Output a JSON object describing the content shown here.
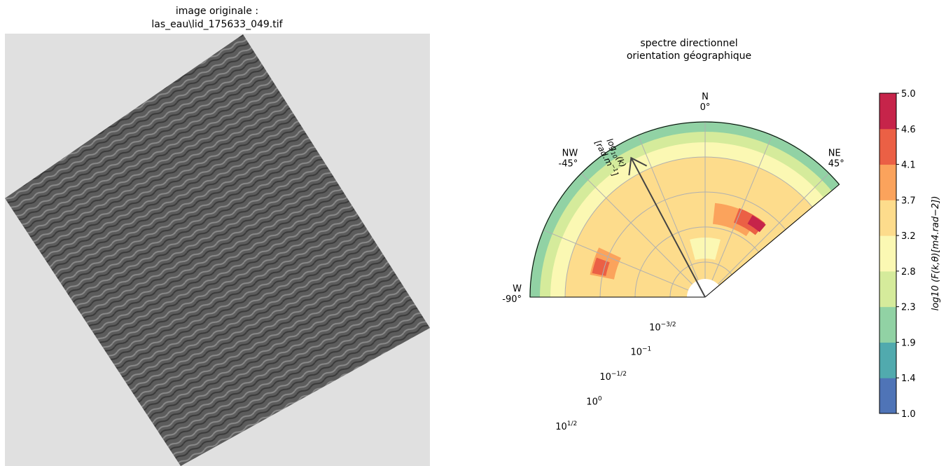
{
  "left_panel": {
    "title_line1": "image originale :",
    "title_line2": "las_eau\\lid_175633_049.tif",
    "background_color": "#e0e0e0",
    "image_color": "#5a5a5a"
  },
  "chart_data": {
    "type": "polar-contour",
    "title_line1": "spectre directionnel",
    "title_line2": "orientation géographique",
    "theta_range_deg": [
      -90,
      50
    ],
    "direction_labels": [
      {
        "name": "N",
        "deg": "0°",
        "theta": 0
      },
      {
        "name": "NW",
        "deg": "-45°",
        "theta": -45
      },
      {
        "name": "NE",
        "deg": "45°",
        "theta": 45
      },
      {
        "name": "W",
        "deg": "-90°",
        "theta": -90
      }
    ],
    "radial_axis": {
      "scale": "log10",
      "range": [
        -2,
        0.5
      ],
      "ticks": [
        {
          "value": -1.5,
          "base": "10",
          "exp": "−3/2"
        },
        {
          "value": -1.0,
          "base": "10",
          "exp": "−1"
        },
        {
          "value": -0.5,
          "base": "10",
          "exp": "−1/2"
        },
        {
          "value": 0.0,
          "base": "10",
          "exp": "0"
        },
        {
          "value": 0.5,
          "base": "10",
          "exp": "1/2"
        }
      ],
      "label_line1": "log",
      "label_sub": "10",
      "label_line1_tail": "(k)",
      "label_line2": "[rad.m",
      "label_line2_exp": "−1",
      "label_line2_tail": "]",
      "arrow_theta": -28
    },
    "colorbar": {
      "levels": [
        1.0,
        1.4,
        1.9,
        2.3,
        2.8,
        3.2,
        3.7,
        4.1,
        4.6,
        5.0
      ],
      "tick_labels": [
        "5.0",
        "4.6",
        "4.1",
        "3.7",
        "3.2",
        "2.8",
        "2.3",
        "1.9",
        "1.4",
        "1.0"
      ],
      "colors": [
        "#4f74b7",
        "#51aaae",
        "#91d2a4",
        "#d5eb9b",
        "#fbf8b3",
        "#fddc8c",
        "#fba35c",
        "#eb6045",
        "#c6244a"
      ],
      "label": "log10 (F(k,θ)[m4.rad−2])"
    },
    "field": {
      "bands": [
        {
          "r_from": 0.5,
          "r_to": 0.35,
          "level": 2
        },
        {
          "r_from": 0.35,
          "r_to": 0.2,
          "level": 3
        },
        {
          "r_from": 0.2,
          "r_to": 0.0,
          "level": 4
        }
      ],
      "patches": [
        {
          "theta": 25,
          "r": -0.9,
          "dt": 35,
          "dr": 0.45,
          "level": 5
        },
        {
          "theta": 20,
          "r": -0.8,
          "dt": 28,
          "dr": 0.3,
          "level": 6
        },
        {
          "theta": 30,
          "r": -0.75,
          "dt": 18,
          "dr": 0.22,
          "level": 7
        },
        {
          "theta": 35,
          "r": -0.72,
          "dt": 10,
          "dr": 0.14,
          "level": 8
        },
        {
          "theta": -70,
          "r": -0.55,
          "dt": 22,
          "dr": 0.5,
          "level": 5
        },
        {
          "theta": -72,
          "r": -0.5,
          "dt": 14,
          "dr": 0.35,
          "level": 6
        },
        {
          "theta": -74,
          "r": -0.45,
          "dt": 8,
          "dr": 0.2,
          "level": 7
        },
        {
          "theta": -40,
          "r": -1.2,
          "dt": 40,
          "dr": 0.5,
          "level": 5
        },
        {
          "theta": 0,
          "r": -1.3,
          "dt": 30,
          "dr": 0.3,
          "level": 4
        }
      ]
    }
  }
}
